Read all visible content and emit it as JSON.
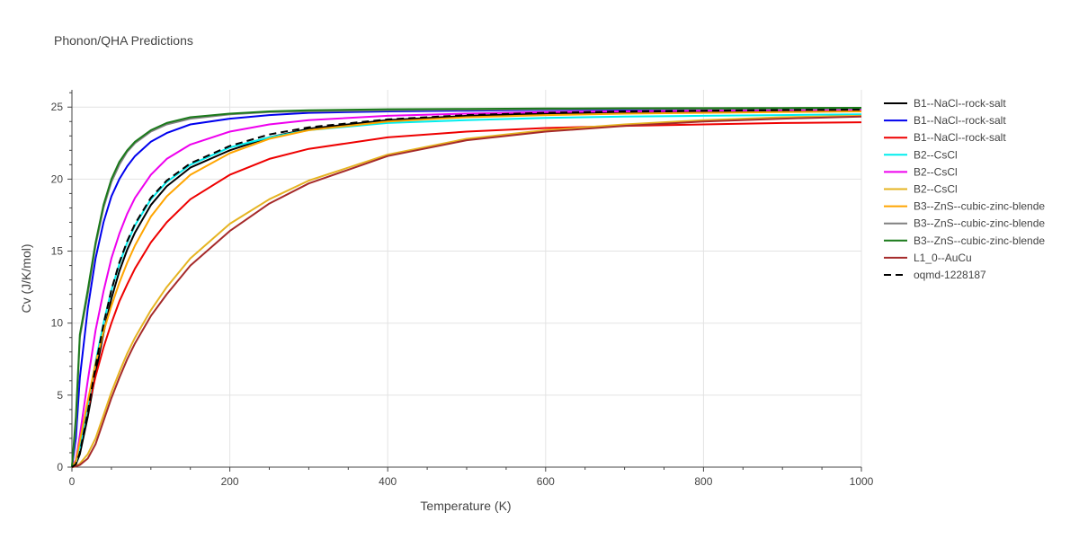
{
  "chart_data": {
    "type": "line",
    "title": "Phonon/QHA Predictions",
    "xlabel": "Temperature (K)",
    "ylabel": "Cv (J/K/mol)",
    "xlim": [
      0,
      1000
    ],
    "ylim": [
      0,
      26.2
    ],
    "xticks": [
      0,
      200,
      400,
      600,
      800,
      1000
    ],
    "yticks": [
      0,
      5,
      10,
      15,
      20,
      25
    ],
    "grid": true,
    "legend_position": "right",
    "x": [
      0,
      5,
      10,
      20,
      30,
      40,
      50,
      60,
      70,
      80,
      100,
      120,
      150,
      200,
      250,
      300,
      400,
      500,
      600,
      700,
      800,
      900,
      1000
    ],
    "series": [
      {
        "name": "B1--NaCl--rock-salt",
        "color": "#000000",
        "dash": "solid",
        "values": [
          0,
          0.2,
          0.9,
          3.5,
          6.5,
          9.3,
          11.7,
          13.6,
          15.1,
          16.3,
          18.2,
          19.5,
          20.8,
          22.0,
          22.9,
          23.5,
          24.1,
          24.4,
          24.55,
          24.65,
          24.7,
          24.75,
          24.8
        ]
      },
      {
        "name": "B1--NaCl--rock-salt",
        "color": "#0000ee",
        "dash": "solid",
        "values": [
          0,
          2.0,
          6.2,
          11.0,
          14.5,
          17.0,
          18.8,
          20.0,
          20.9,
          21.6,
          22.6,
          23.2,
          23.8,
          24.2,
          24.45,
          24.6,
          24.7,
          24.75,
          24.8,
          24.82,
          24.85,
          24.87,
          24.9
        ]
      },
      {
        "name": "B1--NaCl--rock-salt",
        "color": "#ee0000",
        "dash": "solid",
        "values": [
          0,
          0.3,
          1.5,
          4.0,
          6.3,
          8.3,
          10.0,
          11.5,
          12.7,
          13.8,
          15.6,
          17.0,
          18.6,
          20.3,
          21.4,
          22.1,
          22.9,
          23.3,
          23.55,
          23.7,
          23.8,
          23.9,
          23.95
        ]
      },
      {
        "name": "B2--CsCl",
        "color": "#00eeee",
        "dash": "solid",
        "values": [
          0,
          0.3,
          1.4,
          4.2,
          7.3,
          10.0,
          12.3,
          14.1,
          15.6,
          16.8,
          18.6,
          19.8,
          21.0,
          22.2,
          22.9,
          23.4,
          23.9,
          24.1,
          24.25,
          24.35,
          24.4,
          24.45,
          24.5
        ]
      },
      {
        "name": "B2--CsCl",
        "color": "#ee00ee",
        "dash": "solid",
        "values": [
          0,
          0.5,
          2.2,
          6.0,
          9.5,
          12.2,
          14.5,
          16.2,
          17.6,
          18.7,
          20.3,
          21.4,
          22.4,
          23.3,
          23.8,
          24.1,
          24.4,
          24.55,
          24.65,
          24.7,
          24.75,
          24.8,
          24.82
        ]
      },
      {
        "name": "B2--CsCl",
        "color": "#e6b422",
        "dash": "solid",
        "values": [
          0,
          0.05,
          0.25,
          0.9,
          2.0,
          3.6,
          5.2,
          6.6,
          7.9,
          9.0,
          10.9,
          12.5,
          14.5,
          16.9,
          18.6,
          19.9,
          21.7,
          22.8,
          23.4,
          23.8,
          24.1,
          24.3,
          24.4
        ]
      },
      {
        "name": "B3--ZnS--cubic-zinc-blende",
        "color": "#ffa500",
        "dash": "solid",
        "values": [
          0,
          0.4,
          1.8,
          4.6,
          7.2,
          9.4,
          11.2,
          12.8,
          14.2,
          15.4,
          17.4,
          18.8,
          20.3,
          21.8,
          22.8,
          23.4,
          24.0,
          24.3,
          24.45,
          24.55,
          24.6,
          24.65,
          24.7
        ]
      },
      {
        "name": "B3--ZnS--cubic-zinc-blende",
        "color": "#808080",
        "dash": "solid",
        "values": [
          0,
          3.0,
          9.0,
          12.0,
          15.4,
          18.0,
          19.8,
          21.0,
          21.9,
          22.5,
          23.3,
          23.8,
          24.2,
          24.5,
          24.65,
          24.7,
          24.78,
          24.82,
          24.85,
          24.87,
          24.88,
          24.89,
          24.9
        ]
      },
      {
        "name": "B3--ZnS--cubic-zinc-blende",
        "color": "#1a7a1a",
        "dash": "solid",
        "values": [
          0,
          3.5,
          9.2,
          12.3,
          15.6,
          18.2,
          20.0,
          21.2,
          22.0,
          22.6,
          23.4,
          23.9,
          24.3,
          24.55,
          24.7,
          24.78,
          24.85,
          24.88,
          24.9,
          24.92,
          24.93,
          24.94,
          24.95
        ]
      },
      {
        "name": "L1_0--AuCu",
        "color": "#a52a2a",
        "dash": "solid",
        "values": [
          0,
          0.05,
          0.15,
          0.6,
          1.6,
          3.2,
          4.8,
          6.2,
          7.5,
          8.6,
          10.5,
          12.0,
          14.0,
          16.4,
          18.3,
          19.7,
          21.6,
          22.7,
          23.3,
          23.7,
          24.0,
          24.2,
          24.35
        ]
      },
      {
        "name": "oqmd-1228187",
        "color": "#000000",
        "dash": "dash",
        "values": [
          0,
          0.2,
          1.0,
          3.8,
          7.0,
          9.9,
          12.3,
          14.2,
          15.7,
          16.9,
          18.7,
          19.9,
          21.1,
          22.3,
          23.1,
          23.6,
          24.15,
          24.45,
          24.6,
          24.7,
          24.75,
          24.8,
          24.82
        ]
      }
    ]
  }
}
